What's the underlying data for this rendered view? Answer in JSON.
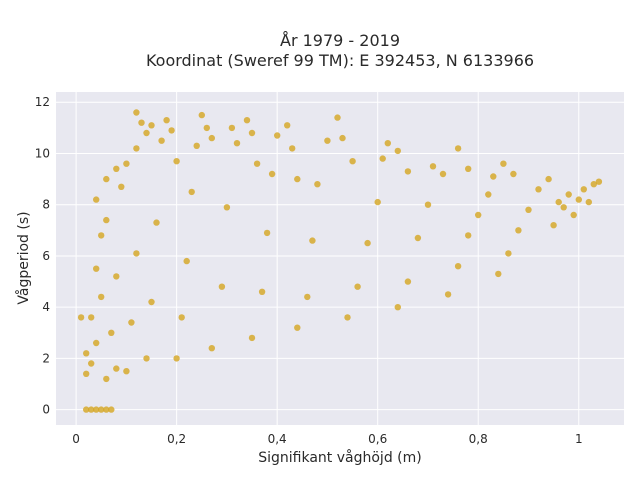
{
  "chart_data": {
    "type": "scatter",
    "title_lines": [
      "År 1979 - 2019",
      "Koordinat (Sweref 99 TM): E 392453, N 6133966"
    ],
    "xlabel": "Signifikant våghöjd (m)",
    "ylabel": "Vågperiod (s)",
    "xlim": [
      -0.04,
      1.09
    ],
    "ylim": [
      -0.6,
      12.4
    ],
    "x_ticks": [
      0,
      0.2,
      0.4,
      0.6,
      0.8,
      1
    ],
    "x_tick_labels": [
      "0",
      "0,2",
      "0,4",
      "0,6",
      "0,8",
      "1"
    ],
    "y_ticks": [
      0,
      2,
      4,
      6,
      8,
      10,
      12
    ],
    "y_tick_labels": [
      "0",
      "2",
      "4",
      "6",
      "8",
      "10",
      "12"
    ],
    "grid": true,
    "marker_color": "#D4A520",
    "plot_background": "#E8E8F0",
    "series": [
      {
        "points": [
          [
            0.02,
            1.4
          ],
          [
            0.03,
            1.8
          ],
          [
            0.04,
            2.6
          ],
          [
            0.03,
            3.6
          ],
          [
            0.05,
            4.4
          ],
          [
            0.04,
            5.5
          ],
          [
            0.05,
            6.8
          ],
          [
            0.06,
            7.4
          ],
          [
            0.04,
            8.2
          ],
          [
            0.06,
            9.0
          ],
          [
            0.08,
            9.4
          ],
          [
            0.06,
            1.2
          ],
          [
            0.08,
            1.6
          ],
          [
            0.07,
            3.0
          ],
          [
            0.08,
            5.2
          ],
          [
            0.09,
            8.7
          ],
          [
            0.1,
            9.6
          ],
          [
            0.1,
            1.5
          ],
          [
            0.11,
            3.4
          ],
          [
            0.12,
            6.1
          ],
          [
            0.12,
            10.2
          ],
          [
            0.12,
            11.6
          ],
          [
            0.13,
            11.2
          ],
          [
            0.14,
            10.8
          ],
          [
            0.15,
            11.1
          ],
          [
            0.14,
            2.0
          ],
          [
            0.15,
            4.2
          ],
          [
            0.16,
            7.3
          ],
          [
            0.17,
            10.5
          ],
          [
            0.18,
            11.3
          ],
          [
            0.19,
            10.9
          ],
          [
            0.2,
            9.7
          ],
          [
            0.2,
            2.0
          ],
          [
            0.21,
            3.6
          ],
          [
            0.22,
            5.8
          ],
          [
            0.23,
            8.5
          ],
          [
            0.24,
            10.3
          ],
          [
            0.25,
            11.5
          ],
          [
            0.26,
            11.0
          ],
          [
            0.27,
            10.6
          ],
          [
            0.27,
            2.4
          ],
          [
            0.29,
            4.8
          ],
          [
            0.3,
            7.9
          ],
          [
            0.31,
            11.0
          ],
          [
            0.32,
            10.4
          ],
          [
            0.34,
            11.3
          ],
          [
            0.35,
            10.8
          ],
          [
            0.36,
            9.6
          ],
          [
            0.35,
            2.8
          ],
          [
            0.37,
            4.6
          ],
          [
            0.38,
            6.9
          ],
          [
            0.39,
            9.2
          ],
          [
            0.4,
            10.7
          ],
          [
            0.42,
            11.1
          ],
          [
            0.43,
            10.2
          ],
          [
            0.44,
            9.0
          ],
          [
            0.44,
            3.2
          ],
          [
            0.46,
            4.4
          ],
          [
            0.47,
            6.6
          ],
          [
            0.48,
            8.8
          ],
          [
            0.5,
            10.5
          ],
          [
            0.52,
            11.4
          ],
          [
            0.53,
            10.6
          ],
          [
            0.55,
            9.7
          ],
          [
            0.54,
            3.6
          ],
          [
            0.56,
            4.8
          ],
          [
            0.58,
            6.5
          ],
          [
            0.6,
            8.1
          ],
          [
            0.61,
            9.8
          ],
          [
            0.62,
            10.4
          ],
          [
            0.64,
            10.1
          ],
          [
            0.66,
            9.3
          ],
          [
            0.64,
            4.0
          ],
          [
            0.66,
            5.0
          ],
          [
            0.68,
            6.7
          ],
          [
            0.7,
            8.0
          ],
          [
            0.71,
            9.5
          ],
          [
            0.73,
            9.2
          ],
          [
            0.76,
            10.2
          ],
          [
            0.78,
            9.4
          ],
          [
            0.74,
            4.5
          ],
          [
            0.76,
            5.6
          ],
          [
            0.78,
            6.8
          ],
          [
            0.8,
            7.6
          ],
          [
            0.82,
            8.4
          ],
          [
            0.83,
            9.1
          ],
          [
            0.85,
            9.6
          ],
          [
            0.87,
            9.2
          ],
          [
            0.84,
            5.3
          ],
          [
            0.86,
            6.1
          ],
          [
            0.88,
            7.0
          ],
          [
            0.9,
            7.8
          ],
          [
            0.92,
            8.6
          ],
          [
            0.94,
            9.0
          ],
          [
            0.95,
            7.2
          ],
          [
            0.96,
            8.1
          ],
          [
            0.97,
            7.9
          ],
          [
            0.98,
            8.4
          ],
          [
            0.99,
            7.6
          ],
          [
            1.0,
            8.2
          ],
          [
            1.01,
            8.6
          ],
          [
            1.02,
            8.1
          ],
          [
            1.03,
            8.8
          ],
          [
            1.04,
            8.9
          ],
          [
            0.02,
            0.0
          ],
          [
            0.03,
            0.0
          ],
          [
            0.04,
            0.0
          ],
          [
            0.05,
            0.0
          ],
          [
            0.06,
            0.0
          ],
          [
            0.07,
            0.0
          ],
          [
            0.01,
            3.6
          ],
          [
            0.02,
            2.2
          ]
        ]
      }
    ]
  }
}
